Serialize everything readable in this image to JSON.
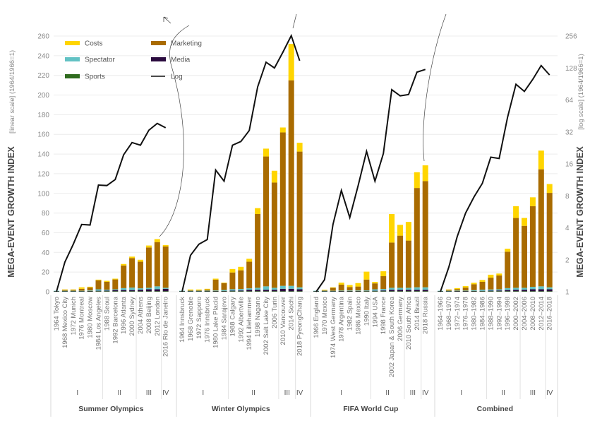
{
  "chart_data": {
    "type": "bar",
    "stacked": true,
    "title": "",
    "ylabel_left": "MEGA-EVENT GROWTH INDEX",
    "ylabel_left_sub": "[linear scale] (1964/1966=1)",
    "ylabel_right": "MEGA-EVENT GROWTH INDEX",
    "ylabel_right_sub": "[log scale] (1964/1966=1)",
    "ylim": [
      0,
      260
    ],
    "yticks": [
      0,
      20,
      40,
      60,
      80,
      100,
      120,
      140,
      160,
      180,
      200,
      220,
      240,
      260
    ],
    "ylim_right": [
      1,
      256
    ],
    "yticks_right": [
      1,
      2,
      4,
      8,
      16,
      32,
      64,
      128,
      256
    ],
    "grid": true,
    "legend_position": "top-left",
    "legend": [
      {
        "name": "Costs",
        "color": "#ffd500",
        "kind": "bar"
      },
      {
        "name": "Marketing",
        "color": "#a96b00",
        "kind": "bar"
      },
      {
        "name": "Spectator",
        "color": "#62c2c4",
        "kind": "bar"
      },
      {
        "name": "Media",
        "color": "#2a0a3e",
        "kind": "bar"
      },
      {
        "name": "Sports",
        "color": "#2f6b1e",
        "kind": "bar"
      },
      {
        "name": "Log",
        "color": "#111111",
        "kind": "line"
      }
    ],
    "stack_order": [
      "Sports",
      "Media",
      "Spectator",
      "Marketing",
      "Costs"
    ],
    "groups": [
      {
        "name": "Summer Olympics",
        "phase_labels": [
          "I",
          "II",
          "III",
          "IV"
        ],
        "phase_breaks": [
          6,
          10,
          13
        ],
        "categories": [
          "1964 Tokyo",
          "1968 Mexico City",
          "1972 Munich",
          "1976 Montreal",
          "1980 Moscow",
          "1984 Los Angeles",
          "1988 Seoul",
          "1992 Barcelona",
          "1996 Atlanta",
          "2000 Sydney",
          "2004 Athens",
          "2008 Beijing",
          "2012 London",
          "2016 Rio de Janeiro"
        ],
        "series": [
          {
            "name": "Sports",
            "values": [
              0.5,
              0.5,
              0.5,
              0.5,
              0.5,
              0.5,
              0.5,
              0.5,
              0.5,
              0.5,
              0.5,
              0.5,
              0.5,
              0.5
            ]
          },
          {
            "name": "Media",
            "values": [
              0.2,
              0.2,
              0.2,
              0.2,
              0.3,
              0.5,
              0.6,
              1.2,
              1.2,
              1.2,
              1.5,
              2,
              2,
              2.5
            ]
          },
          {
            "name": "Spectator",
            "values": [
              0.3,
              0.3,
              0.3,
              0.3,
              0.5,
              1.5,
              1,
              0.8,
              2,
              2.5,
              1.5,
              1.5,
              3,
              1
            ]
          },
          {
            "name": "Marketing",
            "values": [
              0,
              0.8,
              0.8,
              2,
              3,
              9,
              8,
              10,
              23,
              30,
              27,
              41,
              45,
              42
            ]
          },
          {
            "name": "Costs",
            "values": [
              0,
              0.5,
              0.5,
              1.5,
              0.8,
              0.8,
              1,
              0.8,
              1.5,
              1.5,
              2,
              2,
              3,
              1.5
            ]
          }
        ],
        "log_index": [
          1,
          1.9,
          2.8,
          4.3,
          4.25,
          10.1,
          10,
          11.4,
          19.5,
          25.4,
          24,
          33.2,
          38.5,
          35
        ]
      },
      {
        "name": "Winter Olympics",
        "phase_labels": [
          "I",
          "II",
          "III",
          "IV"
        ],
        "phase_breaks": [
          6,
          12,
          14
        ],
        "categories": [
          "1964 Innsbruck",
          "1968 Grenoble",
          "1972 Sapporo",
          "1976 Innsbruck",
          "1980 Lake Placid",
          "1984 Sarajevo",
          "1988 Calgary",
          "1992 Albertville",
          "1994 Lillehammer",
          "1998 Nagano",
          "2002 Salt Lake City",
          "2006 Turin",
          "2010 Vancouver",
          "2014 Sochi",
          "2018 PyeongChang"
        ],
        "series": [
          {
            "name": "Sports",
            "values": [
              0.5,
              0.5,
              0.5,
              0.5,
              0.5,
              0.5,
              0.5,
              0.5,
              0.5,
              0.5,
              0.5,
              0.5,
              0.5,
              0.5,
              0.5
            ]
          },
          {
            "name": "Media",
            "values": [
              0.2,
              0.2,
              0.2,
              0.3,
              0.3,
              0.3,
              0.6,
              0.8,
              1.5,
              1.5,
              1.5,
              1.5,
              2.5,
              2.5,
              2
            ]
          },
          {
            "name": "Spectator",
            "values": [
              0.3,
              0.3,
              0.3,
              0.3,
              0.5,
              1,
              1.5,
              1.5,
              1.5,
              2,
              3.5,
              2,
              3,
              3,
              2
            ]
          },
          {
            "name": "Marketing",
            "values": [
              0,
              0.5,
              0.5,
              1.2,
              11,
              7,
              17,
              19,
              27,
              75,
              132,
              107,
              156,
              209,
              138
            ]
          },
          {
            "name": "Costs",
            "values": [
              0,
              0.8,
              0.8,
              0.7,
              1,
              0.5,
              3.5,
              3.5,
              3,
              6,
              8,
              12,
              5,
              37,
              9
            ]
          }
        ],
        "log_index": [
          1,
          2.2,
          2.8,
          3.1,
          14,
          11,
          24,
          26,
          33,
          85,
          145,
          128,
          180,
          258,
          150
        ]
      },
      {
        "name": "FIFA World Cup",
        "phase_labels": [
          "I",
          "II",
          "III",
          "IV"
        ],
        "phase_breaks": [
          7,
          11,
          13
        ],
        "categories": [
          "1966 England",
          "1970 Mexico",
          "1974 West Germany",
          "1978 Argentina",
          "1982 Spain",
          "1986 Mexico",
          "1990 Italy",
          "1994 USA",
          "1998 France",
          "2002 Japan & South Korea",
          "2006 Germany",
          "2010 South Africa",
          "2014 Brazil",
          "2018 Russia"
        ],
        "series": [
          {
            "name": "Sports",
            "values": [
              0.5,
              0.5,
              0.5,
              0.5,
              0.5,
              0.5,
              0.5,
              0.5,
              0.5,
              0.5,
              0.5,
              0.5,
              0.5,
              0.5
            ]
          },
          {
            "name": "Media",
            "values": [
              0.2,
              0.2,
              0.2,
              0.2,
              0.3,
              0.3,
              0.4,
              0.5,
              0.8,
              1.5,
              1.5,
              1.5,
              1.5,
              1.5
            ]
          },
          {
            "name": "Spectator",
            "values": [
              0.3,
              0.3,
              0.3,
              0.5,
              0.5,
              0.5,
              0.5,
              1.5,
              1.5,
              2,
              2,
              2,
              2.5,
              2.5
            ]
          },
          {
            "name": "Marketing",
            "values": [
              0,
              0.5,
              3,
              6,
              3.5,
              4,
              11,
              6,
              13,
              46,
              53,
              48,
              101,
              108
            ]
          },
          {
            "name": "Costs",
            "values": [
              0,
              0.5,
              0.5,
              2,
              2,
              3.5,
              8,
              1.5,
              5,
              29,
              11,
              19,
              16,
              16
            ]
          }
        ],
        "log_index": [
          1,
          1.3,
          4.3,
          9,
          5,
          10,
          21,
          11,
          20,
          80,
          70,
          72,
          117,
          124
        ]
      },
      {
        "name": "Combined",
        "phase_labels": [
          "I",
          "II",
          "III",
          "IV"
        ],
        "phase_breaks": [
          6,
          10,
          13
        ],
        "categories": [
          "1964–1966",
          "1968–1970",
          "1972–1974",
          "1976–1978",
          "1980–1982",
          "1984–1986",
          "1988–1990",
          "1992–1994",
          "1996–1998",
          "2000–2002",
          "2004–2006",
          "2008–2010",
          "2012–2014",
          "2016–2018"
        ],
        "series": [
          {
            "name": "Sports",
            "values": [
              0.5,
              0.5,
              0.5,
              0.5,
              0.5,
              0.5,
              0.5,
              0.5,
              0.5,
              0.5,
              0.5,
              0.5,
              0.5,
              0.5
            ]
          },
          {
            "name": "Media",
            "values": [
              0.2,
              0.2,
              0.2,
              0.2,
              0.3,
              0.4,
              0.6,
              0.8,
              1.2,
              1.5,
              1.5,
              2,
              2,
              2
            ]
          },
          {
            "name": "Spectator",
            "values": [
              0.3,
              0.3,
              0.5,
              0.5,
              0.8,
              1.2,
              1.2,
              1.2,
              2,
              2,
              2,
              2.5,
              3,
              2
            ]
          },
          {
            "name": "Marketing",
            "values": [
              0,
              0.8,
              1.5,
              3,
              6,
              8,
              12,
              14,
              37,
              71,
              63,
              82,
              119,
              96
            ]
          },
          {
            "name": "Costs",
            "values": [
              0,
              0.5,
              1,
              1.5,
              1.5,
              1.8,
              3,
              2,
              3,
              12,
              8,
              9,
              19,
              9
            ]
          }
        ],
        "log_index": [
          1,
          1.7,
          3.3,
          5.5,
          7.8,
          10.5,
          18.5,
          18,
          44,
          90,
          77,
          100,
          135,
          110
        ]
      }
    ]
  }
}
